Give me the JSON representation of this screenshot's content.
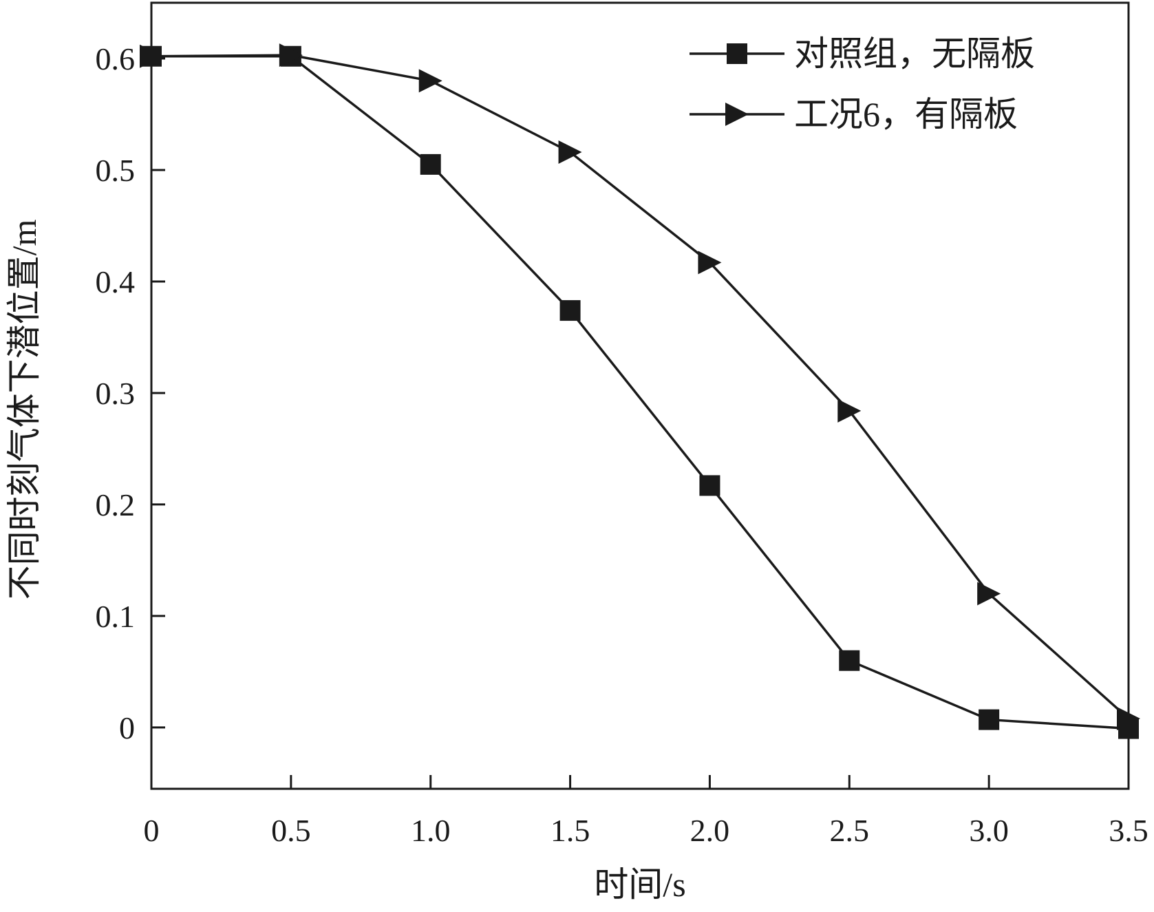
{
  "chart_data": {
    "type": "line",
    "xlabel": "时间/s",
    "ylabel": "不同时刻气体下潜位置/m",
    "xlim": [
      0,
      3.5
    ],
    "ylim": [
      -0.055,
      0.65
    ],
    "xticks": [
      0,
      0.5,
      1.0,
      1.5,
      2.0,
      2.5,
      3.0,
      3.5
    ],
    "xtick_labels": [
      "0",
      "0.5",
      "1.0",
      "1.5",
      "2.0",
      "2.5",
      "3.0",
      "3.5"
    ],
    "yticks": [
      0,
      0.1,
      0.2,
      0.3,
      0.4,
      0.5,
      0.6
    ],
    "ytick_labels": [
      "0",
      "0.1",
      "0.2",
      "0.3",
      "0.4",
      "0.5",
      "0.6"
    ],
    "grid": false,
    "legend_position": "top-right",
    "colors": {
      "line": "#1a1a1a",
      "background": "#ffffff"
    },
    "series": [
      {
        "name": "对照组，无隔板",
        "marker": "square",
        "x": [
          0,
          0.5,
          1.0,
          1.5,
          2.0,
          2.5,
          3.0,
          3.5
        ],
        "y": [
          0.602,
          0.602,
          0.505,
          0.374,
          0.217,
          0.06,
          0.007,
          -0.001
        ]
      },
      {
        "name": "工况6，有隔板",
        "marker": "triangle-right",
        "x": [
          0,
          0.5,
          1.0,
          1.5,
          2.0,
          2.5,
          3.0,
          3.5
        ],
        "y": [
          0.602,
          0.603,
          0.58,
          0.516,
          0.417,
          0.284,
          0.12,
          0.008
        ]
      }
    ]
  }
}
